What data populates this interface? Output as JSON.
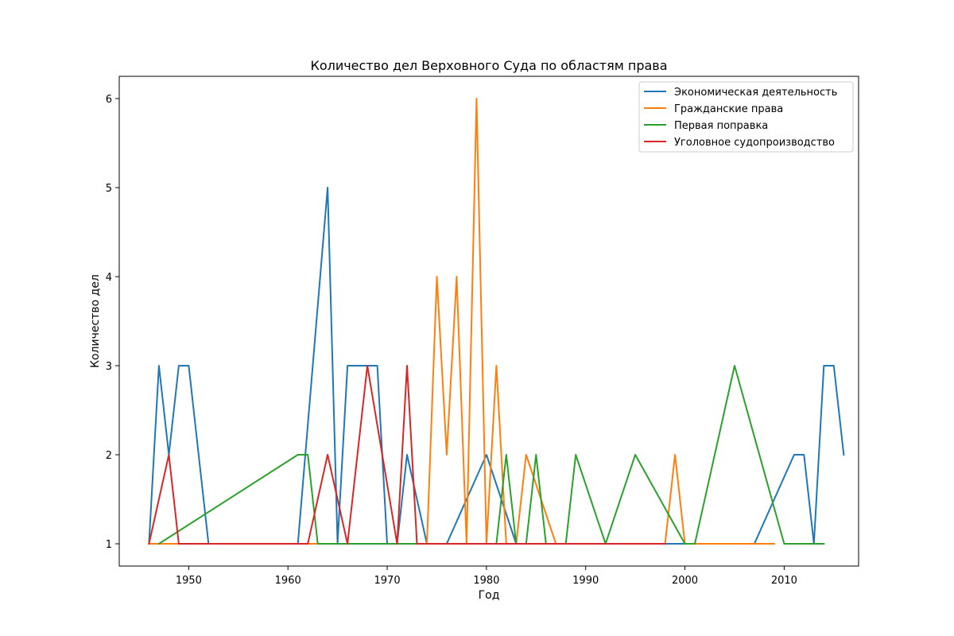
{
  "chart_data": {
    "type": "line",
    "title": "Количество дел Верховного Суда по областям права",
    "xlabel": "Год",
    "ylabel": "Количество дел",
    "xlim": [
      1943,
      2017.5
    ],
    "ylim": [
      0.75,
      6.25
    ],
    "x_ticks": [
      1950,
      1960,
      1970,
      1980,
      1990,
      2000,
      2010
    ],
    "y_ticks": [
      1,
      2,
      3,
      4,
      5,
      6
    ],
    "grid": false,
    "legend_position": "top-right",
    "series": [
      {
        "name": "Экономическая деятельность",
        "color": "#1f77b4",
        "points": [
          [
            1946,
            1
          ],
          [
            1947,
            3
          ],
          [
            1948,
            2
          ],
          [
            1949,
            3
          ],
          [
            1950,
            3
          ],
          [
            1952,
            1
          ],
          [
            1961,
            1
          ],
          [
            1964,
            5
          ],
          [
            1965,
            1
          ],
          [
            1966,
            3
          ],
          [
            1969,
            3
          ],
          [
            1970,
            1
          ],
          [
            1971,
            1
          ],
          [
            1972,
            2
          ],
          [
            1974,
            1
          ],
          [
            1976,
            1
          ],
          [
            1980,
            2
          ],
          [
            1983,
            1
          ],
          [
            2000,
            1
          ],
          [
            2007,
            1
          ],
          [
            2011,
            2
          ],
          [
            2012,
            2
          ],
          [
            2013,
            1
          ],
          [
            2014,
            3
          ],
          [
            2015,
            3
          ],
          [
            2016,
            2
          ]
        ]
      },
      {
        "name": "Гражданские права",
        "color": "#ff7f0e",
        "points": [
          [
            1946,
            1
          ],
          [
            1974,
            1
          ],
          [
            1975,
            4
          ],
          [
            1976,
            2
          ],
          [
            1977,
            4
          ],
          [
            1978,
            1
          ],
          [
            1979,
            6
          ],
          [
            1980,
            1
          ],
          [
            1981,
            3
          ],
          [
            1982,
            1
          ],
          [
            1983,
            1
          ],
          [
            1984,
            2
          ],
          [
            1987,
            1
          ],
          [
            1998,
            1
          ],
          [
            1999,
            2
          ],
          [
            2000,
            1
          ],
          [
            2009,
            1
          ]
        ]
      },
      {
        "name": "Первая поправка",
        "color": "#2ca02c",
        "points": [
          [
            1947,
            1
          ],
          [
            1961,
            2
          ],
          [
            1962,
            2
          ],
          [
            1963,
            1
          ],
          [
            1981,
            1
          ],
          [
            1982,
            2
          ],
          [
            1983,
            1
          ],
          [
            1984,
            1
          ],
          [
            1985,
            2
          ],
          [
            1986,
            1
          ],
          [
            1988,
            1
          ],
          [
            1989,
            2
          ],
          [
            1992,
            1
          ],
          [
            1995,
            2
          ],
          [
            2000,
            1
          ],
          [
            2001,
            1
          ],
          [
            2005,
            3
          ],
          [
            2010,
            1
          ],
          [
            2014,
            1
          ]
        ]
      },
      {
        "name": "Уголовное судопроизводство",
        "color": "#d62728",
        "points": [
          [
            1946,
            1
          ],
          [
            1948,
            2
          ],
          [
            1949,
            1
          ],
          [
            1962,
            1
          ],
          [
            1964,
            2
          ],
          [
            1966,
            1
          ],
          [
            1968,
            3
          ],
          [
            1971,
            1
          ],
          [
            1972,
            3
          ],
          [
            1973,
            1
          ],
          [
            1998,
            1
          ]
        ]
      }
    ]
  }
}
